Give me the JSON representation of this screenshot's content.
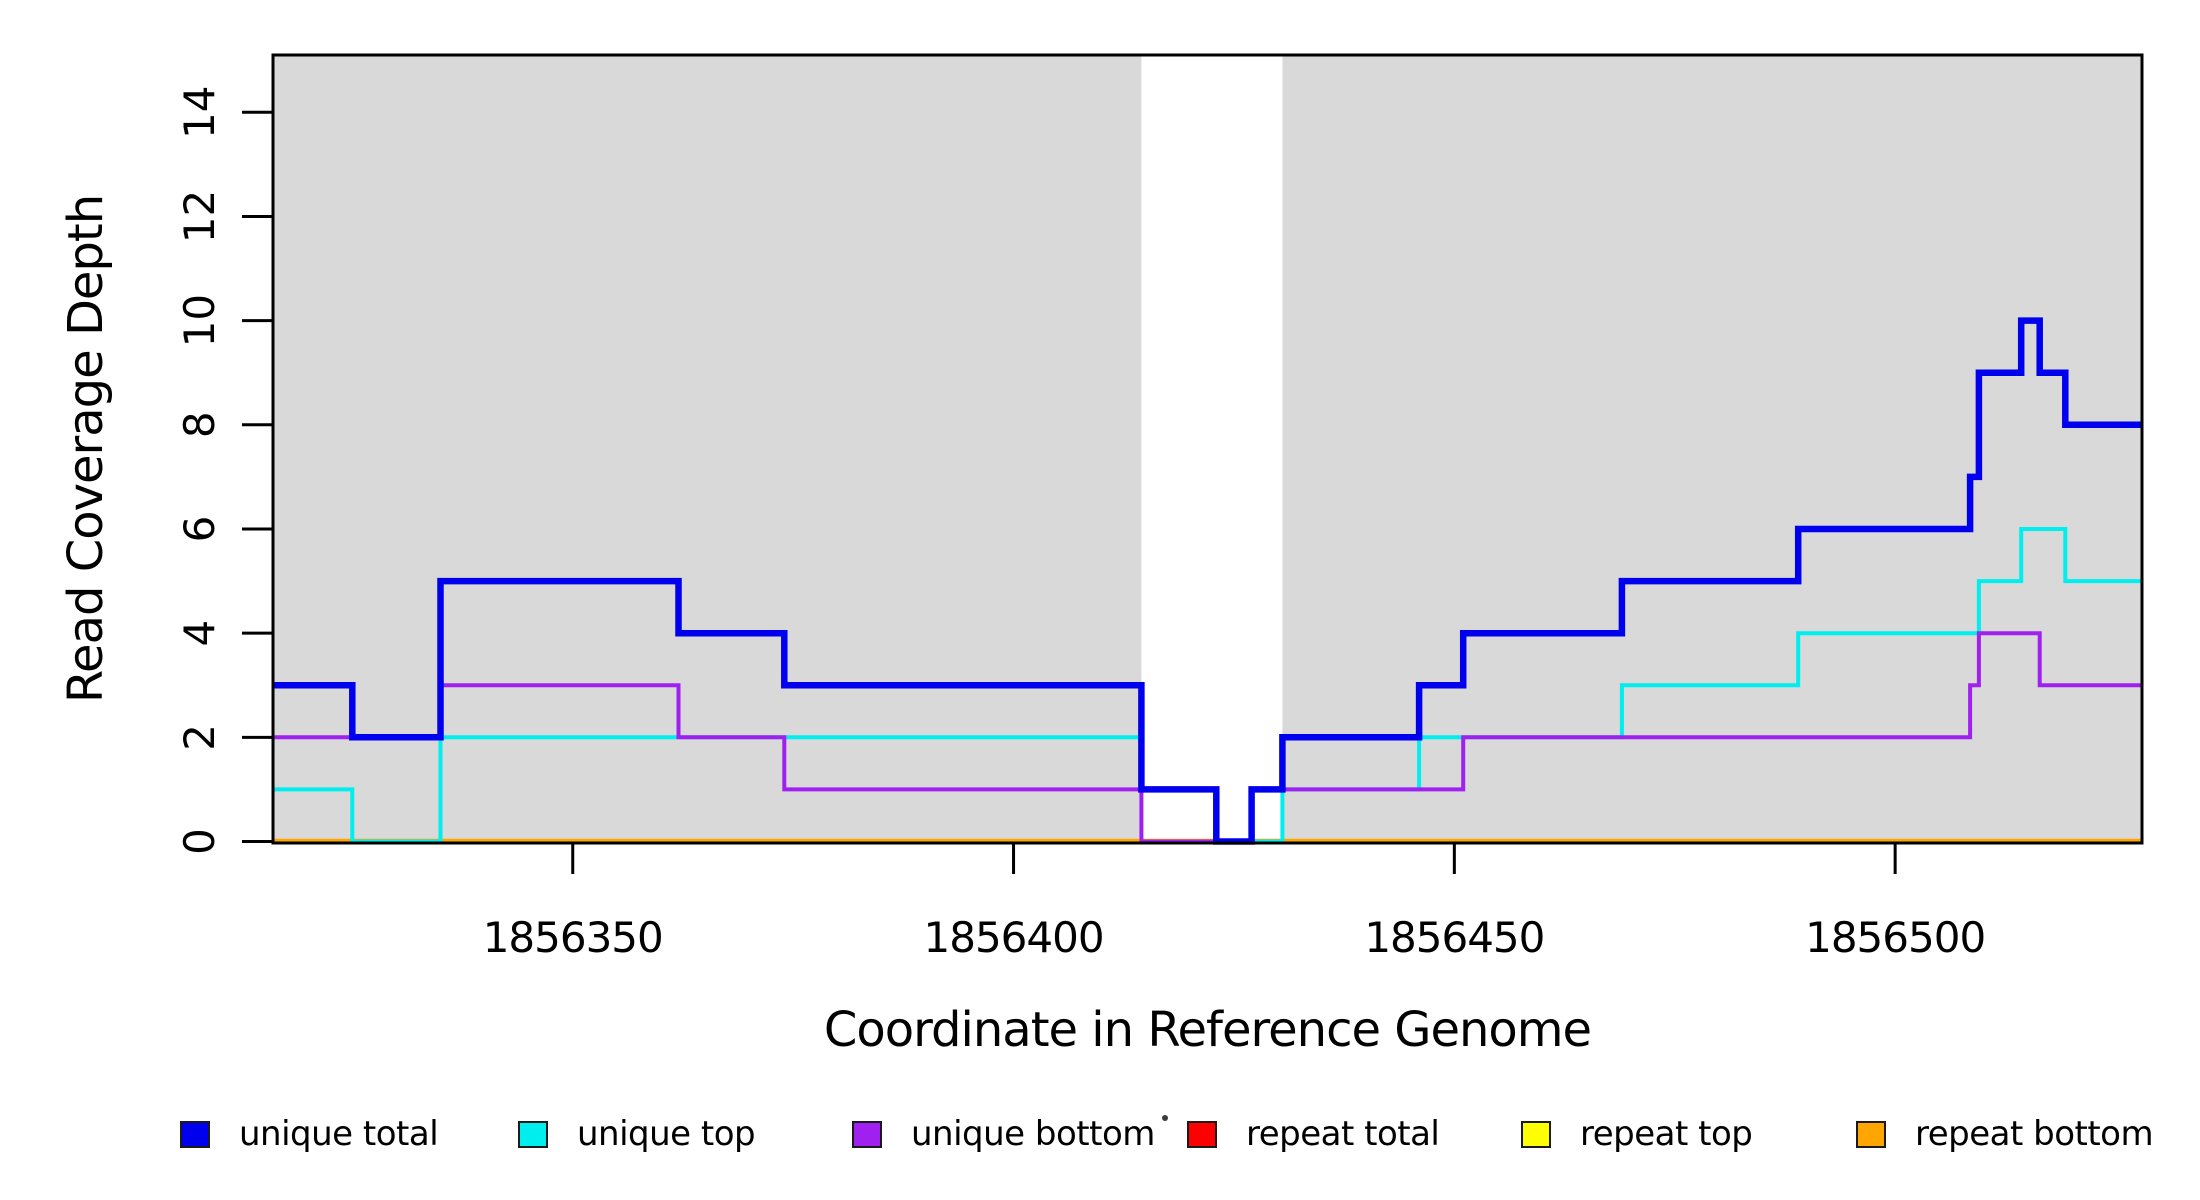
{
  "figure": {
    "background_color": "#FFFFFF",
    "panel_shade_color": "#D9D9D9",
    "border_color": "#000000",
    "text_color": "#000000"
  },
  "chart_data": {
    "type": "line",
    "subtype": "step",
    "title": "",
    "xlabel": "Coordinate in Reference Genome",
    "ylabel": "Read Coverage Depth",
    "xlim": [
      1856316,
      1856528
    ],
    "ylim": [
      0,
      15.1
    ],
    "x_ticks": [
      1856350,
      1856400,
      1856450,
      1856500
    ],
    "y_ticks": [
      0,
      2,
      4,
      6,
      8,
      10,
      12,
      14
    ],
    "grid": false,
    "legend_position": "bottom",
    "shaded_regions": [
      [
        1856316,
        1856414.5
      ],
      [
        1856430.5,
        1856528
      ]
    ],
    "draw_order": [
      3,
      4,
      5,
      1,
      2,
      0
    ],
    "series": [
      {
        "name": "unique total",
        "color": "#0000EE",
        "line_width": 6.5,
        "breakpoints": [
          [
            1856316,
            3
          ],
          [
            1856325,
            2
          ],
          [
            1856335,
            5
          ],
          [
            1856362,
            4
          ],
          [
            1856374,
            3
          ],
          [
            1856414.5,
            1
          ],
          [
            1856423,
            0
          ],
          [
            1856427,
            1
          ],
          [
            1856430.5,
            2
          ],
          [
            1856446,
            3
          ],
          [
            1856451,
            4
          ],
          [
            1856469,
            5
          ],
          [
            1856489,
            6
          ],
          [
            1856508.5,
            7
          ],
          [
            1856509.5,
            9
          ],
          [
            1856514.3,
            10
          ],
          [
            1856516.4,
            9
          ],
          [
            1856519.3,
            8
          ],
          [
            1856528,
            8
          ]
        ]
      },
      {
        "name": "unique top",
        "color": "#00EEEE",
        "line_width": 4,
        "breakpoints": [
          [
            1856316,
            1
          ],
          [
            1856325,
            0
          ],
          [
            1856335,
            2
          ],
          [
            1856414.5,
            1
          ],
          [
            1856423,
            0
          ],
          [
            1856430.5,
            1
          ],
          [
            1856446,
            2
          ],
          [
            1856469,
            3
          ],
          [
            1856489,
            4
          ],
          [
            1856509.5,
            5
          ],
          [
            1856514.3,
            6
          ],
          [
            1856519.3,
            5
          ],
          [
            1856528,
            5
          ]
        ]
      },
      {
        "name": "unique bottom",
        "color": "#A020F0",
        "line_width": 4,
        "breakpoints": [
          [
            1856316,
            2
          ],
          [
            1856335,
            3
          ],
          [
            1856362,
            2
          ],
          [
            1856374,
            1
          ],
          [
            1856414.5,
            0
          ],
          [
            1856427,
            1
          ],
          [
            1856451,
            2
          ],
          [
            1856508.5,
            3
          ],
          [
            1856509.5,
            4
          ],
          [
            1856516.4,
            3
          ],
          [
            1856528,
            3
          ]
        ]
      },
      {
        "name": "repeat total",
        "color": "#FF0000",
        "line_width": 4,
        "breakpoints": [
          [
            1856316,
            0
          ],
          [
            1856528,
            0
          ]
        ]
      },
      {
        "name": "repeat top",
        "color": "#FFFF00",
        "line_width": 4,
        "breakpoints": [
          [
            1856316,
            0
          ],
          [
            1856528,
            0
          ]
        ]
      },
      {
        "name": "repeat bottom",
        "color": "#FFA500",
        "line_width": 5.5,
        "breakpoints": [
          [
            1856316,
            0
          ],
          [
            1856528,
            0
          ]
        ]
      }
    ]
  }
}
